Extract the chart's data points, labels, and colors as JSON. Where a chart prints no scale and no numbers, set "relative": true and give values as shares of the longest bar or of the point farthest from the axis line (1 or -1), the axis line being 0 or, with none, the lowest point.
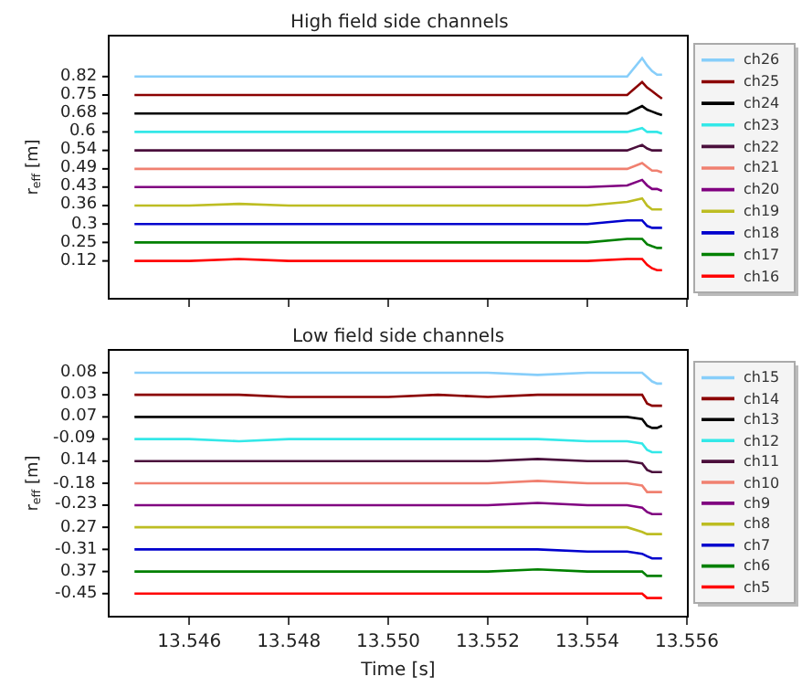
{
  "chart_data": [
    {
      "type": "line",
      "title": "High field side channels",
      "ylabel": "r$_{eff}$ [m]",
      "legend": "right",
      "marker": "none",
      "line_style": "solid",
      "relative": true,
      "tick_labels": false,
      "x": [
        13.5449,
        13.546,
        13.547,
        13.548,
        13.549,
        13.55,
        13.551,
        13.552,
        13.553,
        13.554,
        13.5548,
        13.5551,
        13.5552,
        13.5553,
        13.5554,
        13.5555
      ],
      "xlim": [
        13.5444,
        13.556
      ],
      "xticks": [
        {
          "value": 13.546,
          "label": null
        },
        {
          "value": 13.548,
          "label": null
        },
        {
          "value": 13.55,
          "label": null
        },
        {
          "value": 13.552,
          "label": null
        },
        {
          "value": 13.554,
          "label": null
        },
        {
          "value": 13.556,
          "label": null
        }
      ],
      "annotations": [
        "0.82",
        "0.75",
        "0.68",
        "0.6",
        "0.54",
        "0.49",
        "0.43",
        "0.36",
        "0.3",
        "0.25",
        "0.12"
      ],
      "series": [
        {
          "name": "ch26",
          "color": "#87cefa",
          "values": [
            0.923,
            0.923,
            0.923,
            0.923,
            0.923,
            0.923,
            0.923,
            0.923,
            0.923,
            0.923,
            0.923,
            1.0,
            0.969,
            0.946,
            0.931,
            0.931
          ]
        },
        {
          "name": "ch25",
          "color": "#8b0000",
          "values": [
            0.846,
            0.846,
            0.846,
            0.846,
            0.846,
            0.846,
            0.846,
            0.846,
            0.846,
            0.846,
            0.846,
            0.9,
            0.877,
            0.862,
            0.846,
            0.831
          ]
        },
        {
          "name": "ch24",
          "color": "#000000",
          "values": [
            0.769,
            0.769,
            0.769,
            0.769,
            0.769,
            0.769,
            0.769,
            0.769,
            0.769,
            0.769,
            0.769,
            0.8,
            0.785,
            0.777,
            0.769,
            0.762
          ]
        },
        {
          "name": "ch23",
          "color": "#33e8e8",
          "values": [
            0.692,
            0.692,
            0.692,
            0.692,
            0.692,
            0.692,
            0.692,
            0.692,
            0.692,
            0.692,
            0.692,
            0.708,
            0.692,
            0.692,
            0.692,
            0.685
          ]
        },
        {
          "name": "ch22",
          "color": "#4b0f3c",
          "values": [
            0.615,
            0.615,
            0.615,
            0.615,
            0.615,
            0.615,
            0.615,
            0.615,
            0.615,
            0.615,
            0.615,
            0.638,
            0.623,
            0.615,
            0.615,
            0.615
          ]
        },
        {
          "name": "ch21",
          "color": "#f08070",
          "values": [
            0.538,
            0.538,
            0.538,
            0.538,
            0.538,
            0.538,
            0.538,
            0.538,
            0.538,
            0.538,
            0.538,
            0.562,
            0.546,
            0.531,
            0.531,
            0.523
          ]
        },
        {
          "name": "ch20",
          "color": "#800080",
          "values": [
            0.462,
            0.462,
            0.462,
            0.462,
            0.462,
            0.462,
            0.462,
            0.462,
            0.462,
            0.462,
            0.469,
            0.492,
            0.469,
            0.454,
            0.454,
            0.446
          ]
        },
        {
          "name": "ch19",
          "color": "#bdbd22",
          "values": [
            0.385,
            0.385,
            0.392,
            0.385,
            0.385,
            0.385,
            0.385,
            0.385,
            0.385,
            0.385,
            0.4,
            0.415,
            0.385,
            0.369,
            0.369,
            0.369
          ]
        },
        {
          "name": "ch18",
          "color": "#0000cd",
          "values": [
            0.308,
            0.308,
            0.308,
            0.308,
            0.308,
            0.308,
            0.308,
            0.308,
            0.308,
            0.308,
            0.323,
            0.323,
            0.3,
            0.292,
            0.292,
            0.292
          ]
        },
        {
          "name": "ch17",
          "color": "#008000",
          "values": [
            0.231,
            0.231,
            0.231,
            0.231,
            0.231,
            0.231,
            0.231,
            0.231,
            0.231,
            0.231,
            0.246,
            0.246,
            0.223,
            0.215,
            0.208,
            0.208
          ]
        },
        {
          "name": "ch16",
          "color": "#ff0000",
          "values": [
            0.154,
            0.154,
            0.162,
            0.154,
            0.154,
            0.154,
            0.154,
            0.154,
            0.154,
            0.154,
            0.162,
            0.162,
            0.138,
            0.123,
            0.115,
            0.115
          ]
        }
      ]
    },
    {
      "type": "line",
      "title": "Low field side channels",
      "ylabel": "r$_{eff}$ [m]",
      "xlabel": "Time [s]",
      "legend": "right",
      "marker": "none",
      "line_style": "solid",
      "relative": true,
      "tick_labels": "x",
      "x": [
        13.5449,
        13.546,
        13.547,
        13.548,
        13.549,
        13.55,
        13.551,
        13.552,
        13.553,
        13.554,
        13.5548,
        13.5551,
        13.5552,
        13.5553,
        13.5554,
        13.5555
      ],
      "xlim": [
        13.5444,
        13.556
      ],
      "xticks": [
        13.546,
        13.548,
        {
          "value": 13.55,
          "label": "13.550"
        },
        13.552,
        13.554,
        13.556
      ],
      "annotations": [
        "0.08",
        "0.03",
        "0.07",
        "-0.09",
        "0.14",
        "-0.18",
        "-0.23",
        "0.27",
        "-0.31",
        "0.37",
        "-0.45"
      ],
      "series": [
        {
          "name": "ch15",
          "color": "#87cefa",
          "values": [
            1.0,
            1.0,
            1.0,
            1.0,
            1.0,
            1.0,
            1.0,
            1.0,
            0.991,
            1.0,
            1.0,
            1.0,
            0.982,
            0.964,
            0.955,
            0.955
          ]
        },
        {
          "name": "ch14",
          "color": "#8b0000",
          "values": [
            0.909,
            0.909,
            0.909,
            0.9,
            0.9,
            0.9,
            0.909,
            0.9,
            0.909,
            0.909,
            0.909,
            0.909,
            0.873,
            0.864,
            0.864,
            0.864
          ]
        },
        {
          "name": "ch13",
          "color": "#000000",
          "values": [
            0.818,
            0.818,
            0.818,
            0.818,
            0.818,
            0.818,
            0.818,
            0.818,
            0.818,
            0.818,
            0.818,
            0.809,
            0.782,
            0.773,
            0.773,
            0.782
          ]
        },
        {
          "name": "ch12",
          "color": "#33e8e8",
          "values": [
            0.727,
            0.727,
            0.718,
            0.727,
            0.727,
            0.727,
            0.727,
            0.727,
            0.727,
            0.718,
            0.718,
            0.709,
            0.682,
            0.673,
            0.673,
            0.673
          ]
        },
        {
          "name": "ch11",
          "color": "#4b0f3c",
          "values": [
            0.636,
            0.636,
            0.636,
            0.636,
            0.636,
            0.636,
            0.636,
            0.636,
            0.645,
            0.636,
            0.636,
            0.627,
            0.6,
            0.591,
            0.591,
            0.591
          ]
        },
        {
          "name": "ch10",
          "color": "#f08070",
          "values": [
            0.545,
            0.545,
            0.545,
            0.545,
            0.545,
            0.545,
            0.545,
            0.545,
            0.555,
            0.545,
            0.545,
            0.536,
            0.509,
            0.509,
            0.509,
            0.509
          ]
        },
        {
          "name": "ch9",
          "color": "#800080",
          "values": [
            0.455,
            0.455,
            0.455,
            0.455,
            0.455,
            0.455,
            0.455,
            0.455,
            0.464,
            0.455,
            0.455,
            0.445,
            0.427,
            0.418,
            0.418,
            0.418
          ]
        },
        {
          "name": "ch8",
          "color": "#bdbd22",
          "values": [
            0.364,
            0.364,
            0.364,
            0.364,
            0.364,
            0.364,
            0.364,
            0.364,
            0.364,
            0.364,
            0.364,
            0.345,
            0.336,
            0.336,
            0.336,
            0.336
          ]
        },
        {
          "name": "ch7",
          "color": "#0000cd",
          "values": [
            0.273,
            0.273,
            0.273,
            0.273,
            0.273,
            0.273,
            0.273,
            0.273,
            0.273,
            0.264,
            0.264,
            0.255,
            0.245,
            0.236,
            0.236,
            0.236
          ]
        },
        {
          "name": "ch6",
          "color": "#008000",
          "values": [
            0.182,
            0.182,
            0.182,
            0.182,
            0.182,
            0.182,
            0.182,
            0.182,
            0.191,
            0.182,
            0.182,
            0.182,
            0.164,
            0.164,
            0.164,
            0.164
          ]
        },
        {
          "name": "ch5",
          "color": "#ff0000",
          "values": [
            0.091,
            0.091,
            0.091,
            0.091,
            0.091,
            0.091,
            0.091,
            0.091,
            0.091,
            0.091,
            0.091,
            0.091,
            0.073,
            0.073,
            0.073,
            0.073
          ]
        }
      ]
    }
  ]
}
